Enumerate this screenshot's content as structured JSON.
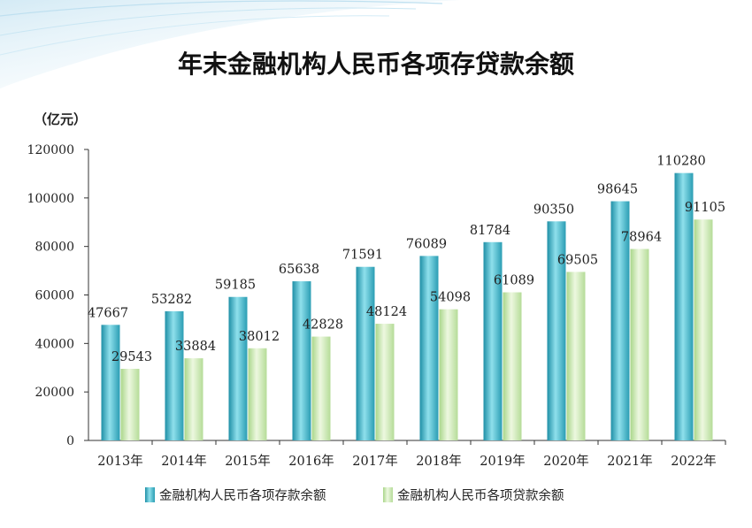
{
  "chart_data": {
    "type": "bar",
    "title": "年末金融机构人民币各项存贷款余额",
    "unit_label": "（亿元）",
    "categories": [
      "2013年",
      "2014年",
      "2015年",
      "2016年",
      "2017年",
      "2018年",
      "2019年",
      "2020年",
      "2021年",
      "2022年"
    ],
    "series": [
      {
        "name": "金融机构人民币各项存款余额",
        "values": [
          47667,
          53282,
          59185,
          65638,
          71591,
          76089,
          81784,
          90350,
          98645,
          110280
        ],
        "color": "#3fb3c6"
      },
      {
        "name": "金融机构人民币各项贷款余额",
        "values": [
          29543,
          33884,
          38012,
          42828,
          48124,
          54098,
          61089,
          69505,
          78964,
          91105
        ],
        "color": "#c6e6a8"
      }
    ],
    "yticks": [
      0,
      20000,
      40000,
      60000,
      80000,
      100000,
      120000
    ],
    "ylim": [
      0,
      120000
    ],
    "grid": false,
    "legend_position": "bottom"
  }
}
